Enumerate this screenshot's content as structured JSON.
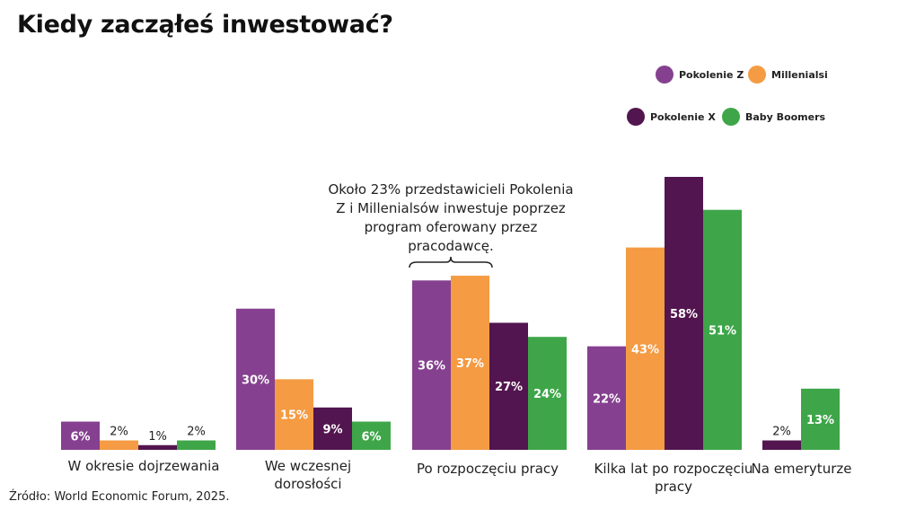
{
  "title": "Kiedy zacząłeś inwestować?",
  "source": "Źródło: World Economic Forum, 2025.",
  "annotation": "Około 23% przedstawicieli Pokolenia Z i Millenialsów inwestuje poprzez program oferowany przez pracodawcę.",
  "legend": [
    {
      "name": "Pokolenie Z",
      "color": "#85418f"
    },
    {
      "name": "Millenialsi",
      "color": "#f59b43"
    },
    {
      "name": "Pokolenie X",
      "color": "#52154f"
    },
    {
      "name": "Baby Boomers",
      "color": "#3ea649"
    }
  ],
  "chart_data": {
    "type": "bar",
    "categories": [
      "W okresie dojrzewania",
      "We wczesnej dorosłości",
      "Po rozpoczęciu pracy",
      "Kilka lat po rozpoczęciu pracy",
      "Na emeryturze"
    ],
    "series": [
      {
        "name": "Pokolenie Z",
        "color": "#85418f",
        "values": [
          6,
          30,
          36,
          22,
          null
        ],
        "labels": [
          "6%",
          "30%",
          "36%",
          "22%",
          ""
        ]
      },
      {
        "name": "Millenialsi",
        "color": "#f59b43",
        "values": [
          2,
          15,
          37,
          43,
          null
        ],
        "labels": [
          "2%",
          "15%",
          "37%",
          "43%",
          ""
        ]
      },
      {
        "name": "Pokolenie X",
        "color": "#52154f",
        "values": [
          1,
          9,
          27,
          58,
          2
        ],
        "labels": [
          "1%",
          "9%",
          "27%",
          "58%",
          "2%"
        ]
      },
      {
        "name": "Baby Boomers",
        "color": "#3ea649",
        "values": [
          2,
          6,
          24,
          51,
          13
        ],
        "labels": [
          "2%",
          "6%",
          "24%",
          "51%",
          "13%"
        ]
      }
    ],
    "ylim": [
      0,
      58
    ],
    "grid": false,
    "legend_position": "top-right"
  }
}
